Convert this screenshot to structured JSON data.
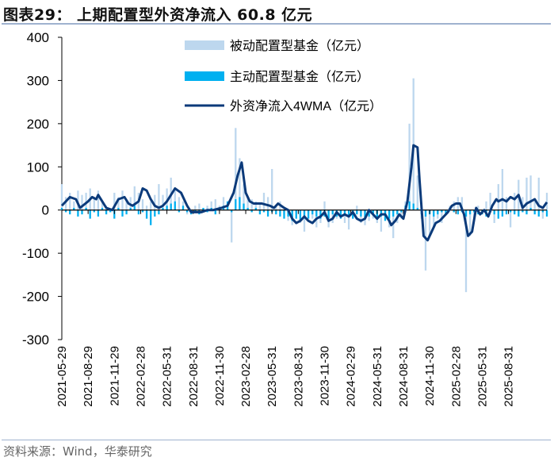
{
  "title": "图表29：  上期配置型外资净流入 60.8 亿元",
  "source": "资料来源：Wind，华泰研究",
  "colors": {
    "passive": "#bdd7ee",
    "active": "#00b0f0",
    "line": "#0b3a7a",
    "axis": "#000000",
    "rule": "#9fb2cf"
  },
  "chart_data": {
    "type": "bar+line",
    "title": "上期配置型外资净流入 60.8 亿元",
    "x_unit": "weeks since 2021-05-29",
    "xlim": [
      0,
      240
    ],
    "ylim": [
      -300,
      400
    ],
    "yticks": [
      400,
      300,
      200,
      100,
      0,
      -100,
      -200,
      -300
    ],
    "xtick_labels": [
      "2021-05-29",
      "2021-08-29",
      "2021-11-29",
      "2022-02-28",
      "2022-05-31",
      "2022-08-31",
      "2022-11-30",
      "2023-02-28",
      "2023-05-31",
      "2023-08-31",
      "2023-11-30",
      "2024-02-29",
      "2024-05-31",
      "2024-08-31",
      "2024-11-30",
      "2025-02-28",
      "2025-05-31",
      "2025-08-31"
    ],
    "xtick_step_weeks": 13,
    "legend": [
      "被动配置型基金（亿元）",
      "主动配置型基金（亿元）",
      "外资净流入4WMA（亿元）"
    ],
    "legend_position": "top-center",
    "bar_step_weeks": 2,
    "passive": [
      60,
      30,
      40,
      20,
      45,
      35,
      40,
      50,
      30,
      45,
      20,
      10,
      -5,
      40,
      30,
      45,
      20,
      30,
      55,
      40,
      25,
      10,
      20,
      35,
      60,
      35,
      50,
      75,
      45,
      30,
      20,
      -10,
      -5,
      10,
      15,
      5,
      10,
      20,
      25,
      10,
      30,
      20,
      -75,
      190,
      120,
      60,
      30,
      25,
      20,
      15,
      40,
      30,
      95,
      10,
      20,
      -10,
      -25,
      -35,
      -20,
      -30,
      -50,
      -10,
      -20,
      -40,
      -30,
      20,
      -40,
      -30,
      -20,
      -10,
      -30,
      -45,
      -20,
      10,
      -30,
      -35,
      -25,
      -20,
      -30,
      -50,
      -20,
      -40,
      -65,
      -30,
      -20,
      20,
      200,
      305,
      80,
      -20,
      -140,
      -60,
      -40,
      -20,
      -30,
      -10,
      10,
      20,
      30,
      30,
      -190,
      -60,
      -20,
      10,
      0,
      20,
      40,
      -30,
      60,
      95,
      30,
      -40,
      40,
      70,
      30,
      75,
      80,
      20,
      75,
      -20,
      40
    ],
    "active": [
      5,
      -5,
      -10,
      5,
      -15,
      -10,
      5,
      -20,
      -5,
      -15,
      5,
      -10,
      -5,
      -20,
      5,
      -15,
      -10,
      5,
      10,
      -10,
      -5,
      -20,
      -35,
      -15,
      -10,
      5,
      10,
      15,
      20,
      -5,
      10,
      -5,
      -10,
      -5,
      -10,
      5,
      -5,
      5,
      -10,
      5,
      10,
      20,
      -5,
      25,
      30,
      15,
      5,
      -5,
      5,
      -10,
      -5,
      -15,
      -5,
      -10,
      -15,
      -20,
      -15,
      -25,
      -20,
      -25,
      -15,
      -20,
      -10,
      -15,
      -20,
      -15,
      -20,
      -10,
      -15,
      -20,
      -10,
      -15,
      -20,
      -10,
      -15,
      -20,
      -15,
      -10,
      -20,
      -15,
      -25,
      -20,
      -15,
      -10,
      -5,
      10,
      20,
      15,
      5,
      -10,
      -15,
      -10,
      -15,
      -10,
      -5,
      -10,
      5,
      -5,
      -10,
      -5,
      -15,
      -10,
      -5,
      -10,
      -10,
      -15,
      -5,
      -10,
      -20,
      -15,
      -10,
      -5,
      -10,
      -15,
      -5,
      -10,
      5,
      -10,
      -15,
      -5,
      -15
    ],
    "wma4": [
      [
        0,
        10
      ],
      [
        4,
        30
      ],
      [
        7,
        25
      ],
      [
        9,
        5
      ],
      [
        13,
        20
      ],
      [
        15,
        30
      ],
      [
        17,
        25
      ],
      [
        18,
        35
      ],
      [
        20,
        20
      ],
      [
        22,
        5
      ],
      [
        25,
        0
      ],
      [
        28,
        25
      ],
      [
        31,
        30
      ],
      [
        33,
        15
      ],
      [
        35,
        10
      ],
      [
        38,
        20
      ],
      [
        40,
        50
      ],
      [
        42,
        45
      ],
      [
        44,
        25
      ],
      [
        46,
        10
      ],
      [
        48,
        5
      ],
      [
        50,
        10
      ],
      [
        52,
        20
      ],
      [
        54,
        35
      ],
      [
        56,
        50
      ],
      [
        59,
        40
      ],
      [
        62,
        10
      ],
      [
        64,
        -5
      ],
      [
        69,
        -5
      ],
      [
        72,
        0
      ],
      [
        75,
        0
      ],
      [
        79,
        5
      ],
      [
        82,
        10
      ],
      [
        85,
        40
      ],
      [
        87,
        80
      ],
      [
        89,
        110
      ],
      [
        91,
        40
      ],
      [
        93,
        20
      ],
      [
        95,
        15
      ],
      [
        99,
        15
      ],
      [
        103,
        10
      ],
      [
        105,
        5
      ],
      [
        107,
        15
      ],
      [
        110,
        5
      ],
      [
        112,
        0
      ],
      [
        114,
        -20
      ],
      [
        116,
        -30
      ],
      [
        118,
        -25
      ],
      [
        120,
        -15
      ],
      [
        122,
        -25
      ],
      [
        124,
        -30
      ],
      [
        126,
        -20
      ],
      [
        128,
        -15
      ],
      [
        130,
        -5
      ],
      [
        132,
        -25
      ],
      [
        134,
        -20
      ],
      [
        136,
        -5
      ],
      [
        138,
        -15
      ],
      [
        140,
        -10
      ],
      [
        142,
        -15
      ],
      [
        144,
        -5
      ],
      [
        146,
        -20
      ],
      [
        148,
        -25
      ],
      [
        150,
        -20
      ],
      [
        152,
        0
      ],
      [
        154,
        -10
      ],
      [
        156,
        -20
      ],
      [
        158,
        -10
      ],
      [
        160,
        -10
      ],
      [
        162,
        -25
      ],
      [
        163,
        -35
      ],
      [
        165,
        -25
      ],
      [
        167,
        -10
      ],
      [
        169,
        -20
      ],
      [
        171,
        20
      ],
      [
        173,
        100
      ],
      [
        174,
        150
      ],
      [
        176,
        145
      ],
      [
        177,
        70
      ],
      [
        179,
        -60
      ],
      [
        181,
        -70
      ],
      [
        183,
        -50
      ],
      [
        185,
        -30
      ],
      [
        187,
        -25
      ],
      [
        189,
        -15
      ],
      [
        191,
        -5
      ],
      [
        193,
        10
      ],
      [
        195,
        15
      ],
      [
        197,
        15
      ],
      [
        199,
        -10
      ],
      [
        201,
        -60
      ],
      [
        203,
        -50
      ],
      [
        205,
        5
      ],
      [
        207,
        -10
      ],
      [
        209,
        0
      ],
      [
        211,
        -15
      ],
      [
        213,
        10
      ],
      [
        215,
        25
      ],
      [
        216,
        20
      ],
      [
        218,
        25
      ],
      [
        220,
        20
      ],
      [
        222,
        30
      ],
      [
        224,
        25
      ],
      [
        226,
        35
      ],
      [
        228,
        5
      ],
      [
        230,
        15
      ],
      [
        232,
        20
      ],
      [
        234,
        25
      ],
      [
        236,
        10
      ],
      [
        238,
        5
      ],
      [
        240,
        18
      ]
    ]
  }
}
